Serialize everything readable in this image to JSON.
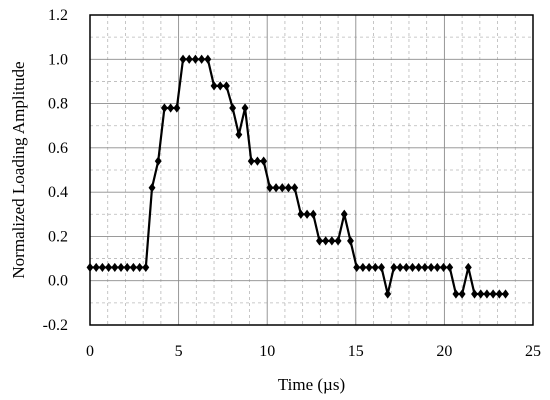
{
  "chart_data": {
    "type": "line",
    "title": "",
    "xlabel": "Time (µs)",
    "ylabel": "Normalized Loading Amplitude",
    "xlim": [
      0,
      25
    ],
    "ylim": [
      -0.2,
      1.2
    ],
    "xticks": [
      0,
      5,
      10,
      15,
      20,
      25
    ],
    "yticks": [
      -0.2,
      0.0,
      0.2,
      0.4,
      0.6,
      0.8,
      1.0,
      1.2
    ],
    "ytick_labels": [
      "-0.2",
      "0.0",
      "0.2",
      "0.4",
      "0.6",
      "0.8",
      "1.0",
      "1.2"
    ],
    "grid": true,
    "minor_grid": true,
    "series": [
      {
        "marker": "diamond",
        "color": "#000000",
        "x": [
          0,
          0.35,
          0.7,
          1.05,
          1.4,
          1.75,
          2.1,
          2.45,
          2.8,
          3.15,
          3.5,
          3.85,
          4.2,
          4.55,
          4.9,
          5.25,
          5.6,
          5.95,
          6.3,
          6.65,
          7.0,
          7.35,
          7.7,
          8.05,
          8.4,
          8.75,
          9.1,
          9.45,
          9.8,
          10.15,
          10.5,
          10.85,
          11.2,
          11.55,
          11.9,
          12.25,
          12.6,
          12.95,
          13.3,
          13.65,
          14.0,
          14.35,
          14.7,
          15.05,
          15.4,
          15.75,
          16.1,
          16.45,
          16.8,
          17.15,
          17.5,
          17.85,
          18.2,
          18.55,
          18.9,
          19.25,
          19.6,
          19.95,
          20.3,
          20.65,
          21.0,
          21.35,
          21.7,
          22.05,
          22.4,
          22.75,
          23.1,
          23.45
        ],
        "y": [
          0.06,
          0.06,
          0.06,
          0.06,
          0.06,
          0.06,
          0.06,
          0.06,
          0.06,
          0.06,
          0.42,
          0.54,
          0.78,
          0.78,
          0.78,
          1.0,
          1.0,
          1.0,
          1.0,
          1.0,
          0.88,
          0.88,
          0.88,
          0.78,
          0.66,
          0.78,
          0.54,
          0.54,
          0.54,
          0.42,
          0.42,
          0.42,
          0.42,
          0.42,
          0.3,
          0.3,
          0.3,
          0.18,
          0.18,
          0.18,
          0.18,
          0.3,
          0.18,
          0.06,
          0.06,
          0.06,
          0.06,
          0.06,
          -0.06,
          0.06,
          0.06,
          0.06,
          0.06,
          0.06,
          0.06,
          0.06,
          0.06,
          0.06,
          0.06,
          -0.06,
          -0.06,
          0.06,
          -0.06,
          -0.06,
          -0.06,
          -0.06,
          -0.06,
          -0.06
        ]
      }
    ]
  }
}
